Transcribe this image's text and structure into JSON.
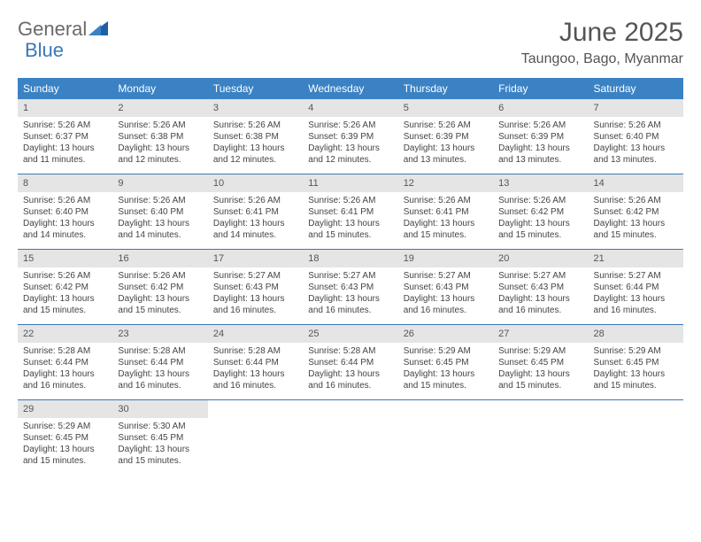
{
  "logo": {
    "text1": "General",
    "text2": "Blue",
    "color1": "#6a6a6a",
    "color2": "#3b78b5"
  },
  "title": "June 2025",
  "location": "Taungoo, Bago, Myanmar",
  "colors": {
    "header_bg": "#3b82c4",
    "header_text": "#ffffff",
    "date_bg": "#e5e5e5",
    "week_border": "#3b78b5",
    "body_text": "#444444"
  },
  "fonts": {
    "title_size": 30,
    "location_size": 16,
    "day_header_size": 12,
    "cell_size": 10
  },
  "day_headers": [
    "Sunday",
    "Monday",
    "Tuesday",
    "Wednesday",
    "Thursday",
    "Friday",
    "Saturday"
  ],
  "days": [
    {
      "n": 1,
      "sunrise": "5:26 AM",
      "sunset": "6:37 PM",
      "daylight": "13 hours and 11 minutes."
    },
    {
      "n": 2,
      "sunrise": "5:26 AM",
      "sunset": "6:38 PM",
      "daylight": "13 hours and 12 minutes."
    },
    {
      "n": 3,
      "sunrise": "5:26 AM",
      "sunset": "6:38 PM",
      "daylight": "13 hours and 12 minutes."
    },
    {
      "n": 4,
      "sunrise": "5:26 AM",
      "sunset": "6:39 PM",
      "daylight": "13 hours and 12 minutes."
    },
    {
      "n": 5,
      "sunrise": "5:26 AM",
      "sunset": "6:39 PM",
      "daylight": "13 hours and 13 minutes."
    },
    {
      "n": 6,
      "sunrise": "5:26 AM",
      "sunset": "6:39 PM",
      "daylight": "13 hours and 13 minutes."
    },
    {
      "n": 7,
      "sunrise": "5:26 AM",
      "sunset": "6:40 PM",
      "daylight": "13 hours and 13 minutes."
    },
    {
      "n": 8,
      "sunrise": "5:26 AM",
      "sunset": "6:40 PM",
      "daylight": "13 hours and 14 minutes."
    },
    {
      "n": 9,
      "sunrise": "5:26 AM",
      "sunset": "6:40 PM",
      "daylight": "13 hours and 14 minutes."
    },
    {
      "n": 10,
      "sunrise": "5:26 AM",
      "sunset": "6:41 PM",
      "daylight": "13 hours and 14 minutes."
    },
    {
      "n": 11,
      "sunrise": "5:26 AM",
      "sunset": "6:41 PM",
      "daylight": "13 hours and 15 minutes."
    },
    {
      "n": 12,
      "sunrise": "5:26 AM",
      "sunset": "6:41 PM",
      "daylight": "13 hours and 15 minutes."
    },
    {
      "n": 13,
      "sunrise": "5:26 AM",
      "sunset": "6:42 PM",
      "daylight": "13 hours and 15 minutes."
    },
    {
      "n": 14,
      "sunrise": "5:26 AM",
      "sunset": "6:42 PM",
      "daylight": "13 hours and 15 minutes."
    },
    {
      "n": 15,
      "sunrise": "5:26 AM",
      "sunset": "6:42 PM",
      "daylight": "13 hours and 15 minutes."
    },
    {
      "n": 16,
      "sunrise": "5:26 AM",
      "sunset": "6:42 PM",
      "daylight": "13 hours and 15 minutes."
    },
    {
      "n": 17,
      "sunrise": "5:27 AM",
      "sunset": "6:43 PM",
      "daylight": "13 hours and 16 minutes."
    },
    {
      "n": 18,
      "sunrise": "5:27 AM",
      "sunset": "6:43 PM",
      "daylight": "13 hours and 16 minutes."
    },
    {
      "n": 19,
      "sunrise": "5:27 AM",
      "sunset": "6:43 PM",
      "daylight": "13 hours and 16 minutes."
    },
    {
      "n": 20,
      "sunrise": "5:27 AM",
      "sunset": "6:43 PM",
      "daylight": "13 hours and 16 minutes."
    },
    {
      "n": 21,
      "sunrise": "5:27 AM",
      "sunset": "6:44 PM",
      "daylight": "13 hours and 16 minutes."
    },
    {
      "n": 22,
      "sunrise": "5:28 AM",
      "sunset": "6:44 PM",
      "daylight": "13 hours and 16 minutes."
    },
    {
      "n": 23,
      "sunrise": "5:28 AM",
      "sunset": "6:44 PM",
      "daylight": "13 hours and 16 minutes."
    },
    {
      "n": 24,
      "sunrise": "5:28 AM",
      "sunset": "6:44 PM",
      "daylight": "13 hours and 16 minutes."
    },
    {
      "n": 25,
      "sunrise": "5:28 AM",
      "sunset": "6:44 PM",
      "daylight": "13 hours and 16 minutes."
    },
    {
      "n": 26,
      "sunrise": "5:29 AM",
      "sunset": "6:45 PM",
      "daylight": "13 hours and 15 minutes."
    },
    {
      "n": 27,
      "sunrise": "5:29 AM",
      "sunset": "6:45 PM",
      "daylight": "13 hours and 15 minutes."
    },
    {
      "n": 28,
      "sunrise": "5:29 AM",
      "sunset": "6:45 PM",
      "daylight": "13 hours and 15 minutes."
    },
    {
      "n": 29,
      "sunrise": "5:29 AM",
      "sunset": "6:45 PM",
      "daylight": "13 hours and 15 minutes."
    },
    {
      "n": 30,
      "sunrise": "5:30 AM",
      "sunset": "6:45 PM",
      "daylight": "13 hours and 15 minutes."
    }
  ],
  "labels": {
    "sunrise": "Sunrise: ",
    "sunset": "Sunset: ",
    "daylight": "Daylight: "
  },
  "layout": {
    "start_weekday": 0,
    "days_in_month": 30,
    "columns": 7
  }
}
